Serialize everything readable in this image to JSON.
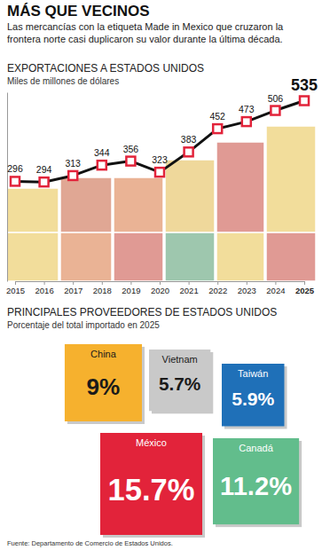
{
  "title": "MÁS QUE VECINOS",
  "subtitle": "Las mercancías con la etiqueta Made in Mexico que cruzaron la frontera norte casi duplicaron su valor durante la última década.",
  "source": "Fuente: Departamento de Comercio de Estados Unidos.",
  "chart_data": [
    {
      "type": "line",
      "title": "EXPORTACIONES A ESTADOS UNIDOS",
      "subtitle": "Miles de millones de dólares",
      "categories": [
        "2015",
        "2016",
        "2017",
        "2018",
        "2019",
        "2020",
        "2021",
        "2022",
        "2023",
        "2024",
        "2025"
      ],
      "values": [
        296,
        294,
        313,
        344,
        356,
        323,
        383,
        452,
        473,
        506,
        535
      ],
      "color": "#111111",
      "marker": "square",
      "ylim": [
        0,
        560
      ],
      "data_labels": true,
      "tick_labels": "x"
    },
    {
      "type": "square",
      "title": "PRINCIPALES PROVEEDORES DE ESTADOS UNIDOS",
      "subtitle": "Porcentaje del total importado en 2025",
      "categories": [
        "China",
        "Vietnam",
        "Taiwán",
        "México",
        "Canadá"
      ],
      "values": [
        9,
        5.7,
        5.9,
        15.7,
        11.2
      ],
      "value_labels": [
        "9%",
        "5.7%",
        "5.9%",
        "15.7%",
        "11.2%"
      ],
      "colors": [
        "#f6b12e",
        "#c9c9c9",
        "#1f70b8",
        "#e2233a",
        "#62bd8c"
      ],
      "data_labels": true
    }
  ]
}
